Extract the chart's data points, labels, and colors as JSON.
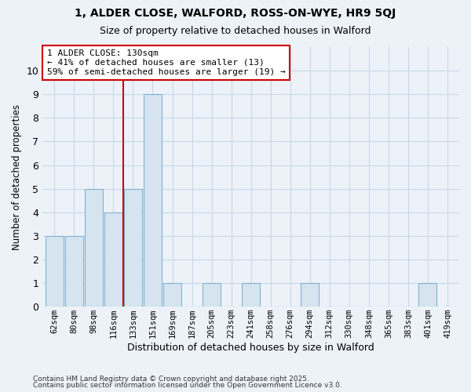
{
  "title1": "1, ALDER CLOSE, WALFORD, ROSS-ON-WYE, HR9 5QJ",
  "title2": "Size of property relative to detached houses in Walford",
  "xlabel": "Distribution of detached houses by size in Walford",
  "ylabel": "Number of detached properties",
  "categories": [
    "62sqm",
    "80sqm",
    "98sqm",
    "116sqm",
    "133sqm",
    "151sqm",
    "169sqm",
    "187sqm",
    "205sqm",
    "223sqm",
    "241sqm",
    "258sqm",
    "276sqm",
    "294sqm",
    "312sqm",
    "330sqm",
    "348sqm",
    "365sqm",
    "383sqm",
    "401sqm",
    "419sqm"
  ],
  "values": [
    3,
    3,
    5,
    4,
    5,
    9,
    1,
    0,
    1,
    0,
    1,
    0,
    0,
    1,
    0,
    0,
    0,
    0,
    0,
    1,
    0
  ],
  "bar_color": "#d6e4f0",
  "bar_edge_color": "#7fb3d3",
  "grid_color": "#c8d8e8",
  "red_line_x": 3.5,
  "annotation_line1": "1 ALDER CLOSE: 130sqm",
  "annotation_line2": "← 41% of detached houses are smaller (13)",
  "annotation_line3": "59% of semi-detached houses are larger (19) →",
  "annotation_box_color": "#ffffff",
  "annotation_box_edge": "#cc0000",
  "red_line_color": "#cc0000",
  "footer1": "Contains HM Land Registry data © Crown copyright and database right 2025.",
  "footer2": "Contains public sector information licensed under the Open Government Licence v3.0.",
  "ylim": [
    0,
    11
  ],
  "yticks": [
    0,
    1,
    2,
    3,
    4,
    5,
    6,
    7,
    8,
    9,
    10,
    11
  ],
  "background_color": "#edf2f9",
  "title_fontsize": 10,
  "subtitle_fontsize": 9
}
